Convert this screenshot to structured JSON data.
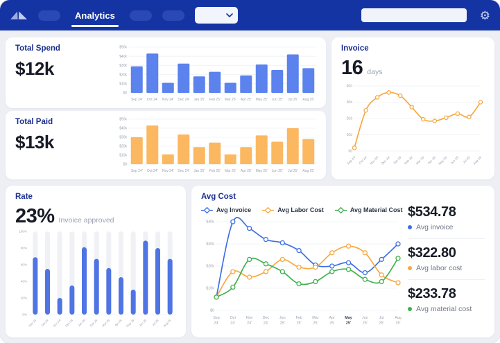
{
  "navbar": {
    "active_tab": "Analytics",
    "search_placeholder": "",
    "icons": [
      "logo-umbrella",
      "chevron-down",
      "search",
      "gear"
    ]
  },
  "colors": {
    "navbar": "#1434a4",
    "bar_blue": "#5b82ed",
    "bar_orange": "#fbb861",
    "line_blue": "#3e6fe4",
    "line_orange": "#f7a941",
    "line_green": "#3fb14d",
    "title_navy": "#1b2f8f",
    "track_gray": "#f0f1f5"
  },
  "cards": {
    "total_spend": {
      "title": "Total Spend",
      "value": "$12k"
    },
    "total_paid": {
      "title": "Total Paid",
      "value": "$13k"
    },
    "invoice": {
      "title": "Invoice",
      "value": "16",
      "unit": "days"
    },
    "rate": {
      "title": "Rate",
      "value": "23%",
      "subtitle": "Invoice approved"
    },
    "avg_cost": {
      "title": "Avg Cost",
      "legend": [
        {
          "label": "Avg Invoice",
          "color": "#3e6fe4"
        },
        {
          "label": "Avg Labor Cost",
          "color": "#f7a941"
        },
        {
          "label": "Avg Material Cost",
          "color": "#3fb14d"
        }
      ],
      "stats": [
        {
          "value": "$534.78",
          "label": "Avg invoice",
          "color": "#3e6fe4"
        },
        {
          "value": "$322.80",
          "label": "Avg labor cost",
          "color": "#f7a941"
        },
        {
          "value": "$233.78",
          "label": "Avg material cost",
          "color": "#3fb14d"
        }
      ]
    }
  },
  "chart_data": [
    {
      "id": "total_spend",
      "type": "bar",
      "title": "Total Spend",
      "categories": [
        "Sep 24'",
        "Oct 24'",
        "Nov 24'",
        "Dec 24'",
        "Jan 25'",
        "Feb 25'",
        "Mar 25'",
        "Apr 25'",
        "May 25'",
        "Jun 25'",
        "Jul 25'",
        "Aug 25'"
      ],
      "values": [
        29,
        43,
        11,
        32,
        18,
        23,
        11,
        19,
        31,
        25,
        42,
        27
      ],
      "ylim": [
        0,
        50
      ],
      "yticks": [
        "$0",
        "$10k",
        "$20k",
        "$30k",
        "$40k",
        "$50k"
      ],
      "color": "#5b82ed",
      "grid": true,
      "unit": "$ thousands"
    },
    {
      "id": "total_paid",
      "type": "bar",
      "title": "Total Paid",
      "categories": [
        "Sep 24'",
        "Oct 24'",
        "Nov 24'",
        "Dec 24'",
        "Jan 25'",
        "Feb 25'",
        "Mar 25'",
        "Apr 25'",
        "May 25'",
        "Jun 25'",
        "Jul 25'",
        "Aug 25'"
      ],
      "values": [
        30,
        43,
        11,
        33,
        19,
        24,
        11,
        19,
        32,
        25,
        40,
        28
      ],
      "ylim": [
        0,
        50
      ],
      "yticks": [
        "$0",
        "$10k",
        "$20k",
        "$30k",
        "$40k",
        "$50k"
      ],
      "color": "#fbb861",
      "grid": true,
      "unit": "$ thousands"
    },
    {
      "id": "invoice_days",
      "type": "line",
      "title": "Invoice (days)",
      "categories": [
        "Sep 24'",
        "Oct 24'",
        "Nov 24'",
        "Dec 24'",
        "Jan 25'",
        "Feb 25'",
        "Mar 25'",
        "Apr 25'",
        "May 25'",
        "Jun 25'",
        "Jul 25'",
        "Aug 25'"
      ],
      "values": [
        2,
        25,
        33,
        36,
        34,
        27,
        19.5,
        18.5,
        20.5,
        23,
        21,
        30
      ],
      "ylim": [
        0,
        40
      ],
      "yticks": [
        "0d",
        "10d",
        "20d",
        "30d",
        "40d"
      ],
      "color": "#f7a941",
      "grid": true,
      "unit": "days"
    },
    {
      "id": "rate",
      "type": "bar",
      "title": "Rate — Invoice approved",
      "categories": [
        "Sep 24'",
        "Oct 24'",
        "Nov 24'",
        "Dec 24'",
        "Jan 25'",
        "Feb 25'",
        "Mar 25'",
        "Apr 25'",
        "May 25'",
        "Jun 25'",
        "Jul 25'",
        "Aug 25'"
      ],
      "values": [
        69,
        55,
        20,
        35,
        81,
        67,
        56,
        45,
        30,
        89,
        80,
        67
      ],
      "ylim": [
        0,
        100
      ],
      "yticks": [
        "0%",
        "20%",
        "40%",
        "60%",
        "80%",
        "100%"
      ],
      "color": "#4f74e3",
      "track_color": "#f0f1f5",
      "grid": false,
      "unit": "%"
    },
    {
      "id": "avg_cost",
      "type": "line",
      "title": "Avg Cost",
      "categories": [
        "Sep 24'",
        "Oct 24'",
        "Nov 24'",
        "Dec 24'",
        "Jan 25'",
        "Feb 25'",
        "Mar 25'",
        "Apr 25'",
        "May 25'",
        "Jun 25'",
        "Jul 25'",
        "Aug 25'"
      ],
      "series": [
        {
          "name": "Avg Invoice",
          "color": "#3e6fe4",
          "values": [
            6,
            40,
            37,
            32,
            30.5,
            27,
            20.5,
            20,
            21.5,
            17,
            23,
            30
          ]
        },
        {
          "name": "Avg Labor Cost",
          "color": "#f7a941",
          "values": [
            6,
            17.5,
            15,
            17.5,
            23,
            19.5,
            19.5,
            26,
            29,
            26,
            16,
            12.5
          ]
        },
        {
          "name": "Avg Material Cost",
          "color": "#3fb14d",
          "values": [
            6,
            10.5,
            23,
            21,
            17.5,
            12,
            13,
            17.5,
            18.5,
            14,
            13,
            23.5
          ]
        }
      ],
      "ylim": [
        0,
        40
      ],
      "yticks": [
        "$0",
        "$10k",
        "$20k",
        "$30k",
        "$40k"
      ],
      "highlight_category": "May 25'",
      "grid": true,
      "unit": "$ thousands",
      "legend_position": "top"
    }
  ]
}
